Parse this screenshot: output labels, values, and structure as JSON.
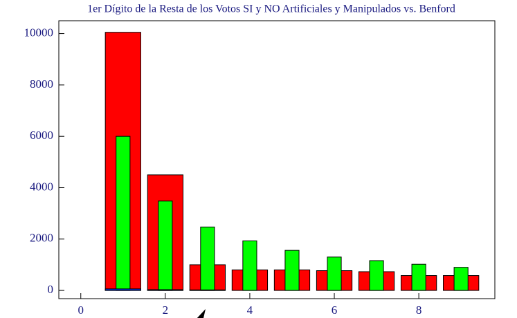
{
  "chart_data": {
    "type": "bar",
    "title": "1er Dígito de la Resta de los Votos SI y NO Artificiales y Manipulados vs. Benford",
    "x": [
      0,
      1,
      2,
      3,
      4,
      5,
      6,
      7,
      8,
      9
    ],
    "series": [
      {
        "color": "#ff0000",
        "values": [
          0,
          10050,
          4500,
          1000,
          800,
          800,
          770,
          730,
          580,
          580
        ]
      },
      {
        "color": "#00ff00",
        "values": [
          0,
          6000,
          3480,
          2470,
          1930,
          1560,
          1300,
          1160,
          1020,
          900
        ]
      },
      {
        "color": "#0033ff",
        "values": [
          0,
          60,
          30,
          20,
          0,
          0,
          0,
          0,
          0,
          0
        ]
      }
    ],
    "xlim": [
      -0.52,
      9.8
    ],
    "xticks": [
      0,
      2,
      4,
      6,
      8
    ],
    "ylim": [
      -320,
      10500
    ],
    "yticks": [
      0,
      2000,
      4000,
      6000,
      8000,
      10000
    ]
  }
}
